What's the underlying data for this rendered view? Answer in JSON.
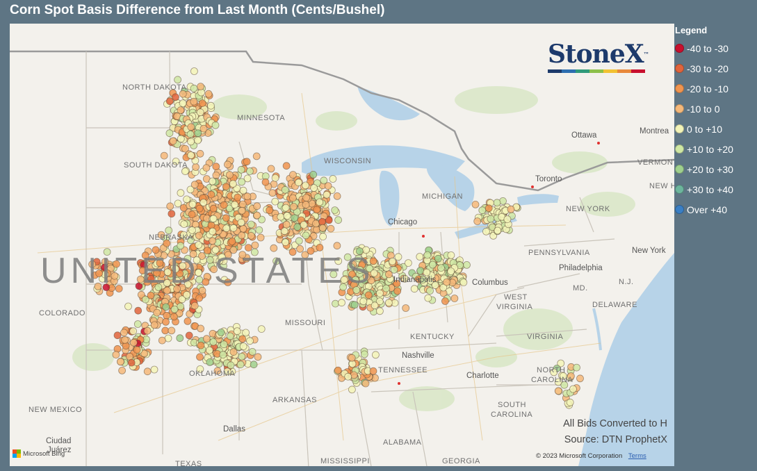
{
  "title": "Corn Spot Basis Difference from Last Month (Cents/Bushel)",
  "legend": {
    "title": "Legend",
    "items": [
      {
        "label": "-40 to -30",
        "color": "#c8102e"
      },
      {
        "label": "-30 to -20",
        "color": "#e0643c"
      },
      {
        "label": "-20 to -10",
        "color": "#f0944f"
      },
      {
        "label": "-10 to 0",
        "color": "#f5b87a"
      },
      {
        "label": "0 to +10",
        "color": "#f3f4b8"
      },
      {
        "label": "+10 to +20",
        "color": "#cfe8a4"
      },
      {
        "label": "+20 to +30",
        "color": "#9fd08e"
      },
      {
        "label": "+30 to +40",
        "color": "#6cb59d"
      },
      {
        "label": "Over +40",
        "color": "#3a7fc4"
      }
    ]
  },
  "brand": {
    "name": "StoneX",
    "trademark": "™",
    "bar_colors": [
      "#1d3a6b",
      "#2d6fb0",
      "#2f9a7a",
      "#8cc04a",
      "#f2c232",
      "#e8883a",
      "#c8102e"
    ]
  },
  "notes": {
    "conversion": "All Bids Converted to H",
    "source": "Source: DTN ProphetX"
  },
  "map": {
    "copyright": "© 2023 Microsoft Corporation",
    "terms": "Terms",
    "provider": "Microsoft Bing",
    "labels": {
      "north_dakota": "NORTH DAKOTA",
      "south_dakota": "SOUTH DAKOTA",
      "minnesota": "MINNESOTA",
      "wisconsin": "WISCONSIN",
      "michigan": "MICHIGAN",
      "nebraska": "NEBRASKA",
      "colorado": "COLORADO",
      "missouri": "MISSOURI",
      "kentucky": "KENTUCKY",
      "tennessee": "TENNESSEE",
      "oklahoma": "OKLAHOMA",
      "arkansas": "ARKANSAS",
      "new_mexico": "NEW MEXICO",
      "alabama": "ALABAMA",
      "georgia": "GEORGIA",
      "mississippi": "MISSISSIPPI",
      "texas": "TEXAS",
      "west_virginia_1": "WEST",
      "west_virginia_2": "VIRGINIA",
      "virginia": "VIRGINIA",
      "north_carolina_1": "NORTH",
      "north_carolina_2": "CAROLINA",
      "south_carolina_1": "SOUTH",
      "south_carolina_2": "CAROLINA",
      "pennsylvania": "PENNSYLVANIA",
      "new_york": "NEW YORK",
      "vermont": "VERMONT",
      "new_hampshire": "NEW HAMPS",
      "md": "MD.",
      "nj": "N.J.",
      "delaware": "DELAWARE",
      "united_states": "UNITED STATES",
      "ottawa": "Ottawa",
      "montreal": "Montrea",
      "toronto": "Toronto",
      "chicago": "Chicago",
      "columbus": "Columbus",
      "philadelphia": "Philadelphia",
      "new_york_city": "New York",
      "nashville": "Nashville",
      "charlotte": "Charlotte",
      "dallas": "Dallas",
      "ciudad": "Ciudad",
      "juarez": "Juárez",
      "indianapolis": "Indianapolis"
    }
  }
}
